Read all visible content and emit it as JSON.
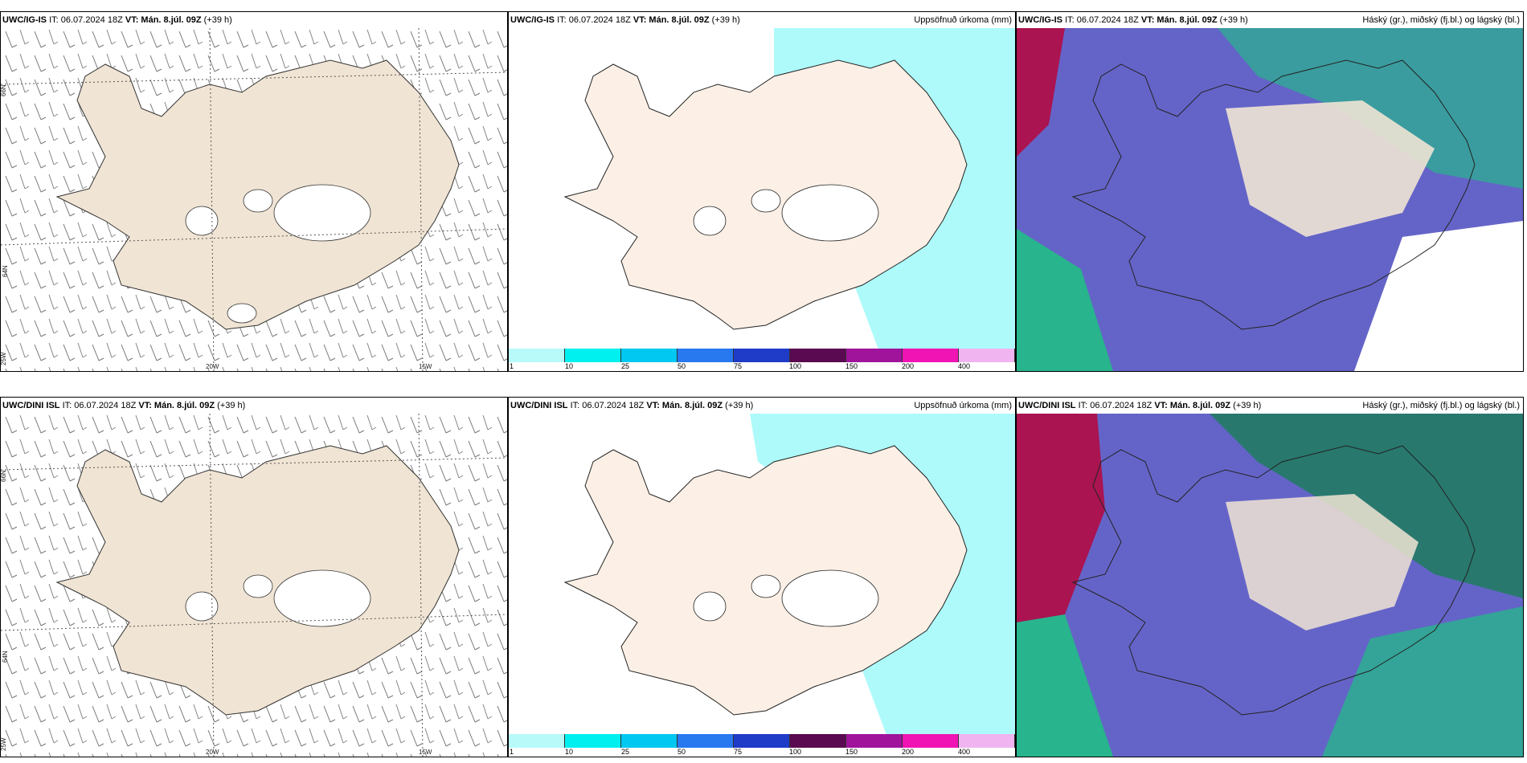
{
  "panels": [
    {
      "model": "UWC/IG-IS",
      "it": "IT: 06.07.2024 18Z",
      "vt": "VT: Mán. 8.júl. 09Z",
      "lead": "(+39 h)",
      "right": ""
    },
    {
      "model": "UWC/IG-IS",
      "it": "IT: 06.07.2024 18Z",
      "vt": "VT: Mán. 8.júl. 09Z",
      "lead": "(+39 h)",
      "right": "Uppsöfnuð úrkoma (mm)"
    },
    {
      "model": "UWC/IG-IS",
      "it": "IT: 06.07.2024 18Z",
      "vt": "VT: Mán. 8.júl. 09Z",
      "lead": "(+39 h)",
      "right": "Háský (gr.), miðský (fj.bl.) og lágský (bl.)"
    },
    {
      "model": "UWC/DINI ISL",
      "it": "IT: 06.07.2024 18Z",
      "vt": "VT: Mán. 8.júl. 09Z",
      "lead": "(+39 h)",
      "right": ""
    },
    {
      "model": "UWC/DINI ISL",
      "it": "IT: 06.07.2024 18Z",
      "vt": "VT: Mán. 8.júl. 09Z",
      "lead": "(+39 h)",
      "right": "Uppsöfnuð úrkoma (mm)"
    },
    {
      "model": "UWC/DINI ISL",
      "it": "IT: 06.07.2024 18Z",
      "vt": "VT: Mán. 8.júl. 09Z",
      "lead": "(+39 h)",
      "right": "Háský (gr.), miðský (fj.bl.) og lágský (bl.)"
    }
  ],
  "coords": {
    "lat66": "66N",
    "lat64": "64N",
    "lon25": "25W",
    "lon20": "20W",
    "lon15": "15W"
  },
  "legend": {
    "labels": [
      "1",
      "10",
      "25",
      "50",
      "75",
      "100",
      "150",
      "200",
      "400"
    ],
    "colors": [
      "#b8fafa",
      "#00f0f0",
      "#00c8f0",
      "#2878f0",
      "#1e3cc8",
      "#5a0a50",
      "#a0149c",
      "#f014b4",
      "#f0b4f0"
    ]
  },
  "colors": {
    "land": "#f0e4d4",
    "land_precip": "#fcf0e6",
    "glacier": "#ffffff",
    "precip_light": "#aefafa",
    "cloud_low": "#6464c8",
    "cloud_mid": "#28b48c",
    "cloud_high": "#aa1450"
  }
}
